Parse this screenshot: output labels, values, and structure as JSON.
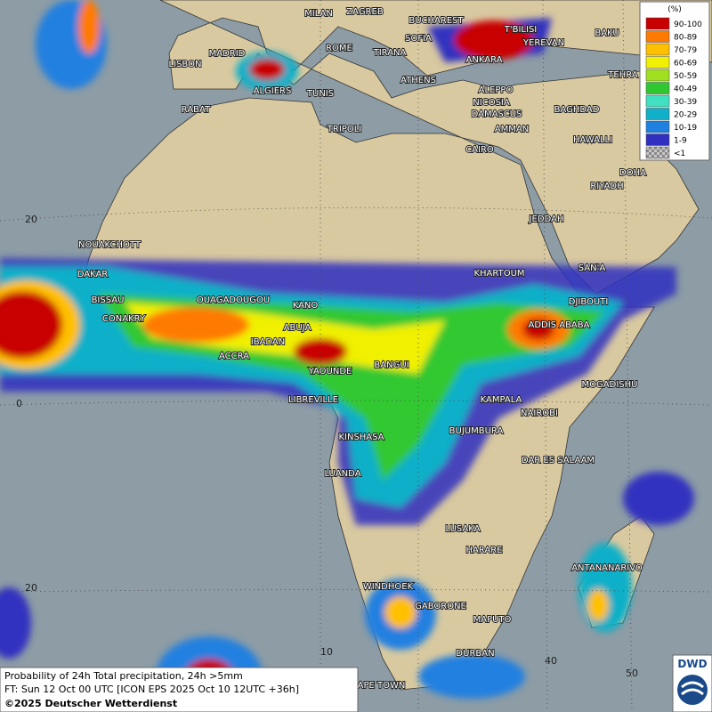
{
  "map": {
    "cities": [
      "MILAN",
      "ZAGREB",
      "BUCHAREST",
      "T'BILISI",
      "BAKU",
      "LISBON",
      "MADRID",
      "ROME",
      "SOFIA",
      "YEREVAN",
      "TIRANA",
      "ANKARA",
      "TEHRA",
      "ALGIERS",
      "TUNIS",
      "ATHENS",
      "RABAT",
      "ALEPPO",
      "NICOSIA",
      "BAGHDAD",
      "TRIPOLI",
      "DAMASCUS",
      "AMMAN",
      "HAWALLI",
      "CAIRO",
      "DOHA",
      "RIYADH",
      "JEDDAH",
      "NOUAKCHOTT",
      "SAN'A",
      "DAKAR",
      "KHARTOUM",
      "BISSAU",
      "OUAGADOUGOU",
      "DJIBOUTI",
      "CONAKRY",
      "KANO",
      "ADDIS ABABA",
      "ABUJA",
      "IBADAN",
      "ACCRA",
      "YAOUNDE",
      "BANGUI",
      "MOGADISHU",
      "LIBREVILLE",
      "KAMPALA",
      "NAIROBI",
      "KINSHASA",
      "BUJUMBURA",
      "DAR ES SALAAM",
      "LUANDA",
      "LUSAKA",
      "HARARE",
      "ANTANANARIVO",
      "WINDHOEK",
      "GABORONE",
      "MAPUTO",
      "DURBAN",
      "CAPE TOWN"
    ],
    "graticule_labels": [
      "20",
      "0",
      "20",
      "10",
      "40",
      "50"
    ]
  },
  "legend": {
    "unit": "(%)",
    "items": [
      {
        "label": "90-100",
        "color": "#c80000"
      },
      {
        "label": "80-89",
        "color": "#ff7a00"
      },
      {
        "label": "70-79",
        "color": "#ffc000"
      },
      {
        "label": "60-69",
        "color": "#f0f000"
      },
      {
        "label": "50-59",
        "color": "#a0e020"
      },
      {
        "label": "40-49",
        "color": "#30c830"
      },
      {
        "label": "30-39",
        "color": "#40e0c0"
      },
      {
        "label": "20-29",
        "color": "#10b0c8"
      },
      {
        "label": "10-19",
        "color": "#2080e0"
      },
      {
        "label": "1-9",
        "color": "#3030c0"
      },
      {
        "label": "<1",
        "color": "#a0a0a0"
      }
    ]
  },
  "caption": {
    "line1": "Probability of 24h Total precipitation, 24h >5mm",
    "line2": "FT: Sun 12 Oct 00 UTC [ICON EPS 2025 Oct 10 12UTC +36h]",
    "copyright": "©2025 Deutscher Wetterdienst"
  },
  "logo": "DWD"
}
